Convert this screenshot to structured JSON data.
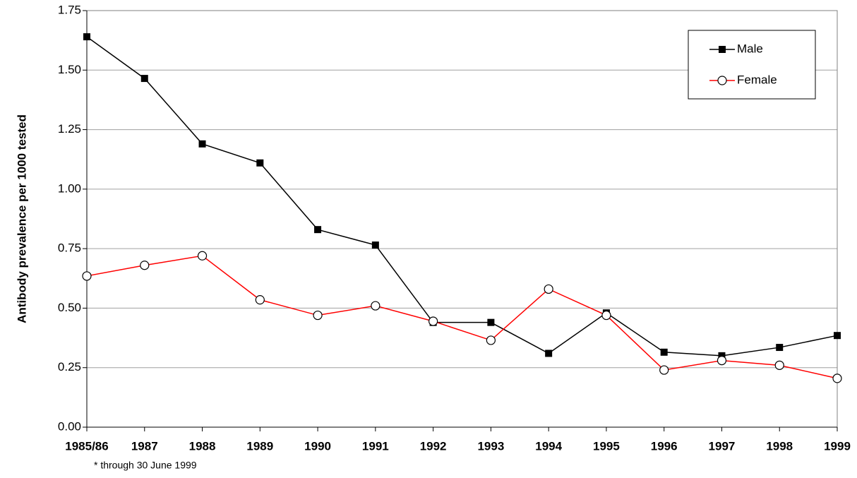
{
  "chart_data": {
    "type": "line",
    "y_label": "Antibody prevalence per 1000 tested",
    "note": "* through 30 June 1999",
    "categories": [
      "1985/86",
      "1987",
      "1988",
      "1989",
      "1990",
      "1991",
      "1992",
      "1993",
      "1994",
      "1995",
      "1996",
      "1997",
      "1998",
      "1999"
    ],
    "series": [
      {
        "name": "Male",
        "color": "#000000",
        "marker": "square",
        "values": [
          1.64,
          1.465,
          1.19,
          1.11,
          0.83,
          0.765,
          0.44,
          0.44,
          0.31,
          0.48,
          0.315,
          0.3,
          0.335,
          0.385
        ]
      },
      {
        "name": "Female",
        "color": "#ff0000",
        "marker": "circle",
        "values": [
          0.635,
          0.68,
          0.72,
          0.535,
          0.47,
          0.51,
          0.445,
          0.365,
          0.58,
          0.47,
          0.24,
          0.28,
          0.26,
          0.205
        ]
      }
    ],
    "ylim": [
      0,
      1.75
    ],
    "yticks": [
      {
        "value": 0,
        "label": "0.00"
      },
      0.25,
      {
        "value": 0.5,
        "label": "0.50"
      },
      0.75,
      {
        "value": 1,
        "label": "1.00"
      },
      1.25,
      {
        "value": 1.5,
        "label": "1.50"
      },
      1.75
    ],
    "grid": true,
    "legend": "top-right"
  }
}
